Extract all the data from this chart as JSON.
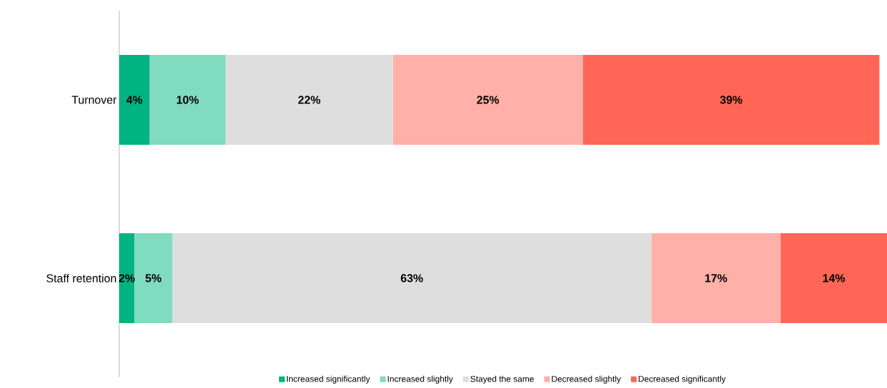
{
  "chart_data": {
    "type": "bar",
    "orientation": "horizontal",
    "stacked": true,
    "categories": [
      "Turnover",
      "Staff retention"
    ],
    "xlim": [
      0,
      101
    ],
    "legend": "bottom",
    "series": [
      {
        "name": "Increased significantly",
        "color": "#00b381",
        "values": [
          4,
          2
        ],
        "value_labels": [
          "4%",
          "2%"
        ]
      },
      {
        "name": "Increased slightly",
        "color": "#80dbbf",
        "values": [
          10,
          5
        ],
        "value_labels": [
          "10%",
          "5%"
        ]
      },
      {
        "name": "Stayed the same",
        "color": "#dedede",
        "values": [
          22,
          63
        ],
        "value_labels": [
          "22%",
          "63%"
        ]
      },
      {
        "name": "Decreased slightly",
        "color": "#ffb0a8",
        "values": [
          25,
          17
        ],
        "value_labels": [
          "25%",
          "17%"
        ]
      },
      {
        "name": "Decreased significantly",
        "color": "#ff6655",
        "values": [
          39,
          14
        ],
        "value_labels": [
          "39%",
          "14%"
        ]
      }
    ]
  }
}
